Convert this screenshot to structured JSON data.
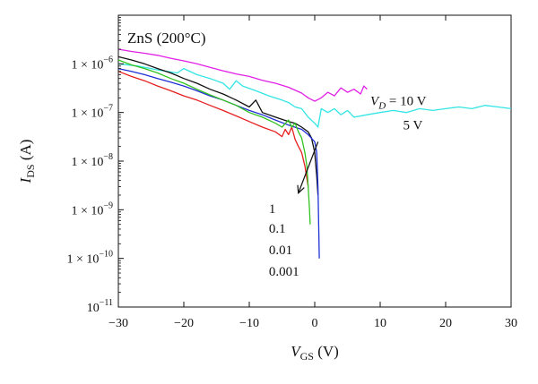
{
  "chart_data": {
    "type": "line",
    "title": "ZnS (200°C)",
    "xlabel": {
      "main": "V",
      "sub": "GS",
      "unit": " (V)"
    },
    "ylabel": {
      "main": "I",
      "sub": "DS",
      "unit": " (A)"
    },
    "xlim": [
      -30,
      30
    ],
    "ylim": [
      1e-11,
      1e-05
    ],
    "yscale": "log",
    "grid": false,
    "x_ticks": [
      -30,
      -20,
      -10,
      0,
      10,
      20,
      30
    ],
    "x_tick_labels": [
      "−30",
      "−20",
      "−10",
      "0",
      "10",
      "20",
      "30"
    ],
    "y_ticks": [
      {
        "value": 1e-06,
        "coef": "1 × 10",
        "exp": "−6"
      },
      {
        "value": 1e-07,
        "coef": "1 × 10",
        "exp": "−7"
      },
      {
        "value": 1e-08,
        "coef": "1 × 10",
        "exp": "−8"
      },
      {
        "value": 1e-09,
        "coef": "1 × 10",
        "exp": "−9"
      },
      {
        "value": 1e-10,
        "coef": "1 × 10",
        "exp": "−10"
      },
      {
        "value": 1e-11,
        "coef": "10",
        "exp": "−11"
      }
    ],
    "annotations": {
      "vd_label": {
        "main": "V",
        "sub": "D",
        "rest": " = 10 V"
      },
      "five_v": "5 V",
      "low_labels": [
        "1",
        "0.1",
        "0.01",
        "0.001"
      ]
    },
    "series": [
      {
        "color": "#e11fe6",
        "points": [
          [
            -30,
            2e-06
          ],
          [
            -28,
            1.8e-06
          ],
          [
            -26,
            1.65e-06
          ],
          [
            -24,
            1.5e-06
          ],
          [
            -22,
            1.3e-06
          ],
          [
            -20,
            1.15e-06
          ],
          [
            -18,
            1e-06
          ],
          [
            -16,
            8.5e-07
          ],
          [
            -14,
            7.2e-07
          ],
          [
            -12,
            6.2e-07
          ],
          [
            -10,
            5.5e-07
          ],
          [
            -8,
            4.6e-07
          ],
          [
            -6,
            4e-07
          ],
          [
            -4,
            3.3e-07
          ],
          [
            -2,
            2.5e-07
          ],
          [
            -1,
            2e-07
          ],
          [
            0,
            1.7e-07
          ],
          [
            1,
            2e-07
          ],
          [
            2,
            2.6e-07
          ],
          [
            3,
            2.2e-07
          ],
          [
            4,
            3.2e-07
          ],
          [
            5,
            2.6e-07
          ],
          [
            6,
            3e-07
          ],
          [
            7,
            2.4e-07
          ],
          [
            7.5,
            3.5e-07
          ],
          [
            8,
            3e-07
          ]
        ]
      },
      {
        "color": "#33e5e5",
        "points": [
          [
            -30,
            1e-06
          ],
          [
            -27,
            9e-07
          ],
          [
            -24,
            7.5e-07
          ],
          [
            -21,
            6.5e-07
          ],
          [
            -20,
            8e-07
          ],
          [
            -18,
            6e-07
          ],
          [
            -16,
            5e-07
          ],
          [
            -14,
            4e-07
          ],
          [
            -13,
            3e-07
          ],
          [
            -12,
            4.5e-07
          ],
          [
            -11,
            3.5e-07
          ],
          [
            -9,
            2.8e-07
          ],
          [
            -7,
            2.2e-07
          ],
          [
            -5,
            1.8e-07
          ],
          [
            -4,
            1.6e-07
          ],
          [
            -3,
            1.3e-07
          ],
          [
            -2,
            1.2e-07
          ],
          [
            -1,
            8e-08
          ],
          [
            0,
            6e-08
          ],
          [
            0.5,
            5e-08
          ],
          [
            1,
            1.2e-07
          ],
          [
            2,
            1e-07
          ],
          [
            3,
            1.2e-07
          ],
          [
            4,
            9e-08
          ],
          [
            5,
            1.1e-07
          ],
          [
            6,
            8e-08
          ],
          [
            8,
            9e-08
          ],
          [
            10,
            1e-07
          ],
          [
            12,
            1.1e-07
          ],
          [
            14,
            1e-07
          ],
          [
            16,
            1.2e-07
          ],
          [
            18,
            1.1e-07
          ],
          [
            20,
            1.2e-07
          ],
          [
            22,
            1.3e-07
          ],
          [
            24,
            1.2e-07
          ],
          [
            26,
            1.4e-07
          ],
          [
            28,
            1.3e-07
          ],
          [
            30,
            1.2e-07
          ]
        ]
      },
      {
        "color": "#111111",
        "points": [
          [
            -30,
            1.4e-06
          ],
          [
            -28,
            1.2e-06
          ],
          [
            -26,
            1e-06
          ],
          [
            -24,
            8e-07
          ],
          [
            -22,
            6.5e-07
          ],
          [
            -20,
            5e-07
          ],
          [
            -18,
            4e-07
          ],
          [
            -16,
            3e-07
          ],
          [
            -14,
            2.4e-07
          ],
          [
            -12,
            1.8e-07
          ],
          [
            -10,
            1.3e-07
          ],
          [
            -9,
            1.8e-07
          ],
          [
            -8,
            1e-07
          ],
          [
            -6,
            8e-08
          ],
          [
            -4,
            6.5e-08
          ],
          [
            -3,
            6e-08
          ],
          [
            -2,
            5e-08
          ],
          [
            -1,
            4e-08
          ],
          [
            -0.5,
            3e-08
          ],
          [
            0,
            1.5e-08
          ],
          [
            0.3,
            5e-09
          ],
          [
            0.5,
            2e-09
          ]
        ]
      },
      {
        "color": "#1f2fd6",
        "points": [
          [
            -30,
            8e-07
          ],
          [
            -28,
            7e-07
          ],
          [
            -26,
            6e-07
          ],
          [
            -24,
            5e-07
          ],
          [
            -22,
            4.2e-07
          ],
          [
            -20,
            3.5e-07
          ],
          [
            -18,
            2.8e-07
          ],
          [
            -16,
            2.2e-07
          ],
          [
            -14,
            1.8e-07
          ],
          [
            -12,
            1.4e-07
          ],
          [
            -10,
            1.1e-07
          ],
          [
            -8,
            9e-08
          ],
          [
            -6,
            7e-08
          ],
          [
            -4,
            5.5e-08
          ],
          [
            -2,
            4.5e-08
          ],
          [
            -1,
            3.5e-08
          ],
          [
            0,
            2.5e-08
          ],
          [
            0.3,
            1.5e-08
          ],
          [
            0.5,
            3e-09
          ],
          [
            0.6,
            5e-10
          ],
          [
            0.7,
            1e-10
          ]
        ]
      },
      {
        "color": "#e51f1f",
        "points": [
          [
            -30,
            7e-07
          ],
          [
            -28,
            5.5e-07
          ],
          [
            -26,
            4.5e-07
          ],
          [
            -24,
            3.5e-07
          ],
          [
            -22,
            2.8e-07
          ],
          [
            -20,
            2.2e-07
          ],
          [
            -18,
            1.8e-07
          ],
          [
            -16,
            1.4e-07
          ],
          [
            -14,
            1.1e-07
          ],
          [
            -12,
            8.5e-08
          ],
          [
            -10,
            6.5e-08
          ],
          [
            -8,
            5e-08
          ],
          [
            -6,
            4e-08
          ],
          [
            -5,
            3.2e-08
          ],
          [
            -4.5,
            4.5e-08
          ],
          [
            -4,
            3.5e-08
          ],
          [
            -3.5,
            5e-08
          ],
          [
            -3,
            2.8e-08
          ],
          [
            -2.5,
            2e-08
          ],
          [
            -2,
            1.5e-08
          ],
          [
            -1.5,
            8e-09
          ],
          [
            -1,
            3e-09
          ]
        ]
      },
      {
        "color": "#33c21f",
        "points": [
          [
            -30,
            1.2e-06
          ],
          [
            -28,
            9.5e-07
          ],
          [
            -26,
            8e-07
          ],
          [
            -24,
            6.5e-07
          ],
          [
            -22,
            5e-07
          ],
          [
            -20,
            4e-07
          ],
          [
            -18,
            3e-07
          ],
          [
            -16,
            2.3e-07
          ],
          [
            -14,
            1.8e-07
          ],
          [
            -12,
            1.4e-07
          ],
          [
            -10,
            1e-07
          ],
          [
            -8,
            8e-08
          ],
          [
            -6,
            6e-08
          ],
          [
            -5,
            5e-08
          ],
          [
            -4,
            7e-08
          ],
          [
            -3.5,
            5e-08
          ],
          [
            -3,
            6e-08
          ],
          [
            -2.5,
            4e-08
          ],
          [
            -2,
            3e-08
          ],
          [
            -1.5,
            1.5e-08
          ],
          [
            -1.2,
            8e-09
          ],
          [
            -1,
            3e-09
          ],
          [
            -0.8,
            1e-09
          ],
          [
            -0.7,
            5e-10
          ]
        ]
      }
    ]
  }
}
